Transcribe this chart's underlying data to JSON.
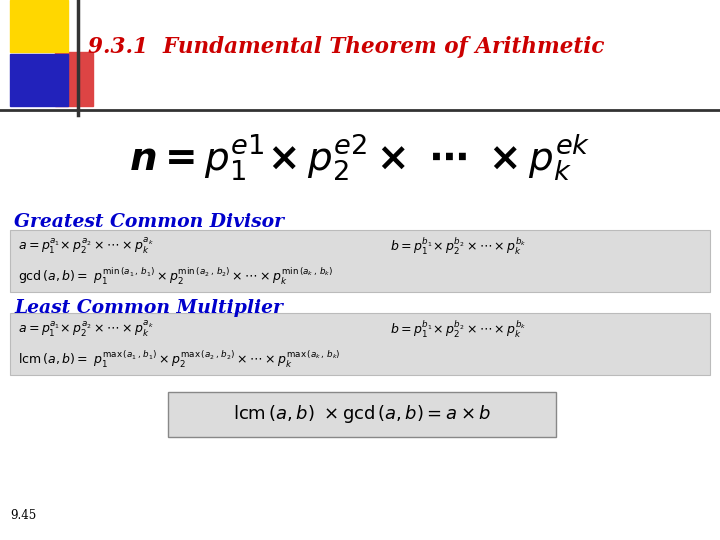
{
  "title": "9.3.1  Fundamental Theorem of Arithmetic",
  "title_color": "#CC0000",
  "bg_color": "#FFFFFF",
  "slide_number": "9.45",
  "header_color": "#0000CC",
  "box_bg": "#DCDCDC",
  "bottom_box_bg": "#DCDCDC",
  "sq_yellow": "#FFD700",
  "sq_blue": "#2222BB",
  "sq_red": "#DD4444",
  "line_color": "#333333"
}
